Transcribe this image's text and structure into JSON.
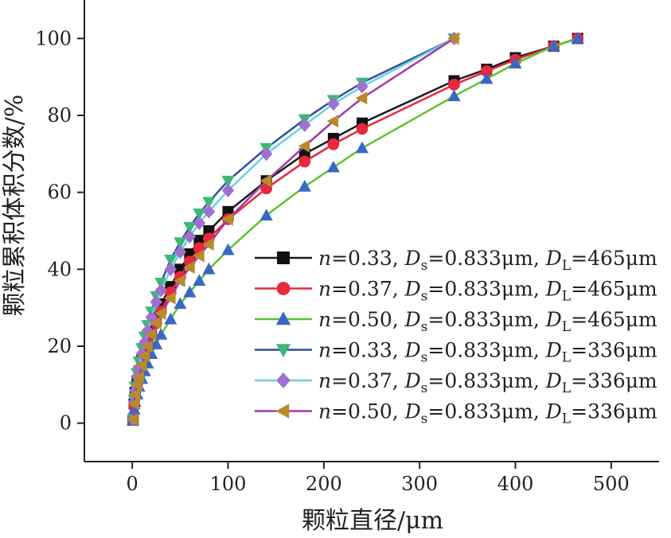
{
  "chart_data": {
    "type": "line",
    "xlabel": "颗粒直径/μm",
    "ylabel": "颗粒累积体积分数/%",
    "xlim": [
      -50,
      550
    ],
    "ylim": [
      -10,
      110
    ],
    "xticks": [
      0,
      100,
      200,
      300,
      400,
      500
    ],
    "yticks": [
      0,
      20,
      40,
      60,
      80,
      100
    ],
    "grid": false,
    "legend_position": "center-right",
    "series": [
      {
        "name": "n=0.33, Ds=0.833μm, DL=465μm",
        "label_parts": {
          "n": "n",
          "n_val": "=0.33, ",
          "ds": "D",
          "ds_sub": "s",
          "ds_val": "=0.833μm, ",
          "dl": "D",
          "dl_sub": "L",
          "dl_val": "=465μm"
        },
        "color": "#1a1a1a",
        "marker": "square",
        "marker_color": "#111111",
        "x": [
          0.833,
          2,
          3,
          5,
          7,
          10,
          13,
          16,
          20,
          25,
          30,
          40,
          50,
          60,
          70,
          80,
          100,
          140,
          180,
          210,
          240,
          336,
          370,
          400,
          440,
          465
        ],
        "y": [
          0.8,
          5,
          8,
          11,
          13.5,
          16.5,
          19,
          21.5,
          24.5,
          28,
          31,
          35.5,
          40,
          44,
          47.5,
          50,
          55,
          63,
          70,
          74,
          78,
          89,
          92,
          95,
          98,
          100
        ]
      },
      {
        "name": "n=0.37, Ds=0.833μm, DL=465μm",
        "label_parts": {
          "n": "n",
          "n_val": "=0.37, ",
          "ds": "D",
          "ds_sub": "s",
          "ds_val": "=0.833μm, ",
          "dl": "D",
          "dl_sub": "L",
          "dl_val": "=465μm"
        },
        "color": "#e8283c",
        "marker": "circle",
        "marker_color": "#e8283c",
        "x": [
          0.833,
          2,
          3,
          5,
          7,
          10,
          13,
          16,
          20,
          25,
          30,
          40,
          50,
          60,
          70,
          80,
          100,
          140,
          180,
          210,
          240,
          336,
          370,
          400,
          440,
          465
        ],
        "y": [
          0.8,
          4.5,
          7,
          10,
          12,
          15,
          17.5,
          20,
          23,
          26,
          29,
          34,
          38,
          42,
          45.5,
          48,
          53,
          61,
          68,
          72.5,
          76.5,
          88,
          91.5,
          94.5,
          98,
          100
        ]
      },
      {
        "name": "n=0.50, Ds=0.833μm, DL=465μm",
        "label_parts": {
          "n": "n",
          "n_val": "=0.50, ",
          "ds": "D",
          "ds_sub": "s",
          "ds_val": "=0.833μm, ",
          "dl": "D",
          "dl_sub": "L",
          "dl_val": "=465μm"
        },
        "color": "#5cc42e",
        "marker": "triangle-up",
        "marker_color": "#3a67c4",
        "x": [
          0.833,
          2,
          3,
          5,
          7,
          10,
          13,
          16,
          20,
          25,
          30,
          40,
          50,
          60,
          70,
          80,
          100,
          140,
          180,
          210,
          240,
          336,
          370,
          400,
          440,
          465
        ],
        "y": [
          0.8,
          3.5,
          5.5,
          7.5,
          9.5,
          11.5,
          13.5,
          15.5,
          18,
          20.5,
          23,
          27,
          31,
          34,
          37,
          40,
          45,
          54,
          61.5,
          66.5,
          71.5,
          85,
          89.5,
          93.5,
          98,
          100
        ]
      },
      {
        "name": "n=0.33, Ds=0.833μm, DL=336μm",
        "label_parts": {
          "n": "n",
          "n_val": "=0.33, ",
          "ds": "D",
          "ds_sub": "s",
          "ds_val": "=0.833μm, ",
          "dl": "D",
          "dl_sub": "L",
          "dl_val": "=336μm"
        },
        "color": "#2f4f9e",
        "marker": "triangle-down",
        "marker_color": "#3cb878",
        "x": [
          0.833,
          2,
          3,
          5,
          7,
          10,
          13,
          16,
          20,
          25,
          30,
          40,
          50,
          60,
          70,
          80,
          100,
          140,
          180,
          210,
          240,
          336
        ],
        "y": [
          1,
          6,
          9.5,
          13,
          16,
          19.5,
          22.5,
          25.5,
          29,
          33,
          36.5,
          42.5,
          47,
          51,
          54.5,
          57.5,
          63,
          71.5,
          79,
          84,
          88.5,
          100
        ]
      },
      {
        "name": "n=0.37, Ds=0.833μm, DL=336μm",
        "label_parts": {
          "n": "n",
          "n_val": "=0.37, ",
          "ds": "D",
          "ds_sub": "s",
          "ds_val": "=0.833μm, ",
          "dl": "D",
          "dl_sub": "L",
          "dl_val": "=336μm"
        },
        "color": "#6ad0e0",
        "marker": "diamond",
        "marker_color": "#a070d0",
        "x": [
          0.833,
          2,
          3,
          5,
          7,
          10,
          13,
          16,
          20,
          25,
          30,
          40,
          50,
          60,
          70,
          80,
          100,
          140,
          180,
          210,
          240,
          336
        ],
        "y": [
          1,
          5.5,
          8.5,
          12,
          14.5,
          18,
          21,
          24,
          27.5,
          31.5,
          34.5,
          40,
          44.5,
          48.5,
          52,
          55,
          60.5,
          70,
          77.5,
          83,
          87.5,
          100
        ]
      },
      {
        "name": "n=0.50, Ds=0.833μm, DL=336μm",
        "label_parts": {
          "n": "n",
          "n_val": "=0.50, ",
          "ds": "D",
          "ds_sub": "s",
          "ds_val": "=0.833μm, ",
          "dl": "D",
          "dl_sub": "L",
          "dl_val": "=336μm"
        },
        "color": "#a23aa6",
        "marker": "triangle-left",
        "marker_color": "#b88a2a",
        "x": [
          0.833,
          2,
          3,
          5,
          7,
          10,
          13,
          16,
          20,
          25,
          30,
          40,
          50,
          60,
          70,
          80,
          100,
          140,
          180,
          210,
          240,
          336
        ],
        "y": [
          1,
          5,
          7.5,
          10,
          12,
          15,
          17.5,
          20,
          23,
          26,
          28.5,
          32.5,
          37,
          40.5,
          43.5,
          46.5,
          53,
          63,
          72,
          78.5,
          84.5,
          100
        ]
      }
    ]
  }
}
